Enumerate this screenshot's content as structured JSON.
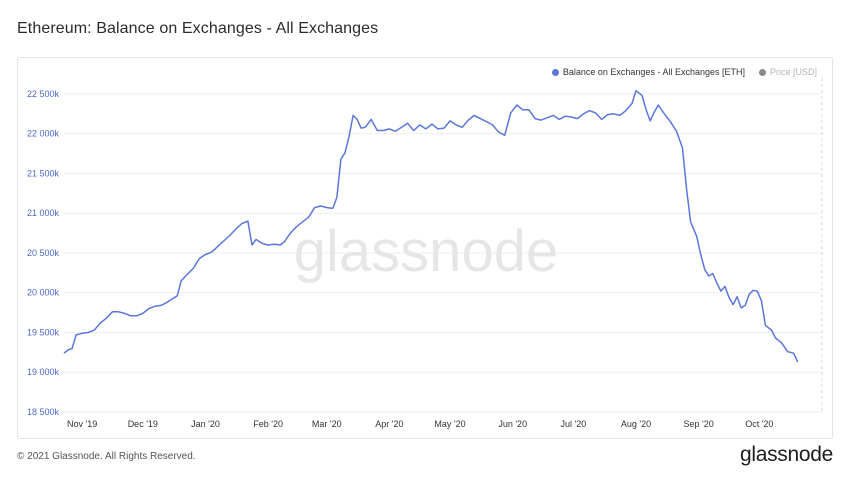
{
  "header": {
    "title": "Ethereum: Balance on Exchanges - All Exchanges"
  },
  "footer": {
    "copyright": "© 2021 Glassnode. All Rights Reserved.",
    "logo_text": "glassnode"
  },
  "watermark": "glassnode",
  "colors": {
    "line": "#5b77db",
    "price": "#8a8a8a",
    "grid": "#eeeeee",
    "tick": "#4a68c8",
    "xtick": "#333333",
    "watermark": "#e6e6e6"
  },
  "chart_data": {
    "type": "line",
    "title": "Ethereum: Balance on Exchanges - All Exchanges",
    "legend": [
      {
        "name": "Balance on Exchanges - All Exchanges [ETH]",
        "color": "#5b77db",
        "active": true
      },
      {
        "name": "Price [USD]",
        "color": "#8a8a8a",
        "active": false
      }
    ],
    "legend_position": "top-right",
    "grid": true,
    "ylim": [
      18500000,
      22700000
    ],
    "y_ticks": [
      {
        "value": 18500000,
        "label": "18 500k"
      },
      {
        "value": 19000000,
        "label": "19 000k"
      },
      {
        "value": 19500000,
        "label": "19 500k"
      },
      {
        "value": 20000000,
        "label": "20 000k"
      },
      {
        "value": 20500000,
        "label": "20 500k"
      },
      {
        "value": 21000000,
        "label": "21 000k"
      },
      {
        "value": 21500000,
        "label": "21 500k"
      },
      {
        "value": 22000000,
        "label": "22 000k"
      },
      {
        "value": 22500000,
        "label": "22 500k"
      }
    ],
    "xlim": [
      "2019-10-24",
      "2020-11-02"
    ],
    "x_ticks": [
      {
        "date": "2019-11-01",
        "label": "Nov '19"
      },
      {
        "date": "2019-12-01",
        "label": "Dec '19"
      },
      {
        "date": "2020-01-01",
        "label": "Jan '20"
      },
      {
        "date": "2020-02-01",
        "label": "Feb '20"
      },
      {
        "date": "2020-03-01",
        "label": "Mar '20"
      },
      {
        "date": "2020-04-01",
        "label": "Apr '20"
      },
      {
        "date": "2020-05-01",
        "label": "May '20"
      },
      {
        "date": "2020-06-01",
        "label": "Jun '20"
      },
      {
        "date": "2020-07-01",
        "label": "Jul '20"
      },
      {
        "date": "2020-08-01",
        "label": "Aug '20"
      },
      {
        "date": "2020-09-01",
        "label": "Sep '20"
      },
      {
        "date": "2020-10-01",
        "label": "Oct '20"
      }
    ],
    "series": [
      {
        "name": "Balance on Exchanges - All Exchanges [ETH]",
        "points": [
          [
            "2019-10-24",
            19240000
          ],
          [
            "2019-10-26",
            19280000
          ],
          [
            "2019-10-28",
            19300000
          ],
          [
            "2019-10-30",
            19470000
          ],
          [
            "2019-11-02",
            19490000
          ],
          [
            "2019-11-05",
            19500000
          ],
          [
            "2019-11-08",
            19530000
          ],
          [
            "2019-11-11",
            19620000
          ],
          [
            "2019-11-14",
            19680000
          ],
          [
            "2019-11-17",
            19760000
          ],
          [
            "2019-11-20",
            19760000
          ],
          [
            "2019-11-23",
            19740000
          ],
          [
            "2019-11-26",
            19710000
          ],
          [
            "2019-11-29",
            19710000
          ],
          [
            "2019-12-02",
            19740000
          ],
          [
            "2019-12-05",
            19800000
          ],
          [
            "2019-12-08",
            19830000
          ],
          [
            "2019-12-11",
            19840000
          ],
          [
            "2019-12-14",
            19880000
          ],
          [
            "2019-12-17",
            19930000
          ],
          [
            "2019-12-19",
            19960000
          ],
          [
            "2019-12-21",
            20150000
          ],
          [
            "2019-12-24",
            20230000
          ],
          [
            "2019-12-27",
            20310000
          ],
          [
            "2019-12-30",
            20430000
          ],
          [
            "2020-01-02",
            20480000
          ],
          [
            "2020-01-05",
            20510000
          ],
          [
            "2020-01-08",
            20580000
          ],
          [
            "2020-01-11",
            20650000
          ],
          [
            "2020-01-14",
            20720000
          ],
          [
            "2020-01-17",
            20800000
          ],
          [
            "2020-01-20",
            20870000
          ],
          [
            "2020-01-23",
            20900000
          ],
          [
            "2020-01-25",
            20600000
          ],
          [
            "2020-01-27",
            20670000
          ],
          [
            "2020-01-30",
            20620000
          ],
          [
            "2020-02-02",
            20600000
          ],
          [
            "2020-02-05",
            20610000
          ],
          [
            "2020-02-08",
            20600000
          ],
          [
            "2020-02-10",
            20640000
          ],
          [
            "2020-02-13",
            20750000
          ],
          [
            "2020-02-16",
            20830000
          ],
          [
            "2020-02-19",
            20890000
          ],
          [
            "2020-02-22",
            20950000
          ],
          [
            "2020-02-25",
            21070000
          ],
          [
            "2020-02-28",
            21090000
          ],
          [
            "2020-03-02",
            21070000
          ],
          [
            "2020-03-05",
            21060000
          ],
          [
            "2020-03-07",
            21200000
          ],
          [
            "2020-03-09",
            21680000
          ],
          [
            "2020-03-11",
            21760000
          ],
          [
            "2020-03-13",
            21960000
          ],
          [
            "2020-03-15",
            22230000
          ],
          [
            "2020-03-17",
            22180000
          ],
          [
            "2020-03-19",
            22070000
          ],
          [
            "2020-03-21",
            22080000
          ],
          [
            "2020-03-24",
            22180000
          ],
          [
            "2020-03-27",
            22040000
          ],
          [
            "2020-03-30",
            22040000
          ],
          [
            "2020-04-02",
            22060000
          ],
          [
            "2020-04-05",
            22030000
          ],
          [
            "2020-04-08",
            22080000
          ],
          [
            "2020-04-11",
            22130000
          ],
          [
            "2020-04-14",
            22040000
          ],
          [
            "2020-04-17",
            22110000
          ],
          [
            "2020-04-20",
            22060000
          ],
          [
            "2020-04-23",
            22120000
          ],
          [
            "2020-04-26",
            22060000
          ],
          [
            "2020-04-29",
            22070000
          ],
          [
            "2020-05-02",
            22160000
          ],
          [
            "2020-05-05",
            22110000
          ],
          [
            "2020-05-08",
            22080000
          ],
          [
            "2020-05-11",
            22170000
          ],
          [
            "2020-05-14",
            22230000
          ],
          [
            "2020-05-17",
            22190000
          ],
          [
            "2020-05-20",
            22150000
          ],
          [
            "2020-05-23",
            22110000
          ],
          [
            "2020-05-26",
            22020000
          ],
          [
            "2020-05-29",
            21980000
          ],
          [
            "2020-06-01",
            22260000
          ],
          [
            "2020-06-04",
            22360000
          ],
          [
            "2020-06-07",
            22300000
          ],
          [
            "2020-06-10",
            22300000
          ],
          [
            "2020-06-13",
            22190000
          ],
          [
            "2020-06-16",
            22170000
          ],
          [
            "2020-06-19",
            22200000
          ],
          [
            "2020-06-22",
            22230000
          ],
          [
            "2020-06-25",
            22180000
          ],
          [
            "2020-06-28",
            22220000
          ],
          [
            "2020-07-01",
            22210000
          ],
          [
            "2020-07-04",
            22190000
          ],
          [
            "2020-07-07",
            22250000
          ],
          [
            "2020-07-10",
            22290000
          ],
          [
            "2020-07-13",
            22260000
          ],
          [
            "2020-07-16",
            22180000
          ],
          [
            "2020-07-19",
            22240000
          ],
          [
            "2020-07-22",
            22250000
          ],
          [
            "2020-07-25",
            22230000
          ],
          [
            "2020-07-28",
            22290000
          ],
          [
            "2020-07-31",
            22380000
          ],
          [
            "2020-08-02",
            22540000
          ],
          [
            "2020-08-05",
            22480000
          ],
          [
            "2020-08-07",
            22300000
          ],
          [
            "2020-08-09",
            22160000
          ],
          [
            "2020-08-11",
            22270000
          ],
          [
            "2020-08-13",
            22360000
          ],
          [
            "2020-08-16",
            22250000
          ],
          [
            "2020-08-19",
            22150000
          ],
          [
            "2020-08-22",
            22030000
          ],
          [
            "2020-08-25",
            21820000
          ],
          [
            "2020-08-27",
            21300000
          ],
          [
            "2020-08-29",
            20890000
          ],
          [
            "2020-09-01",
            20710000
          ],
          [
            "2020-09-03",
            20480000
          ],
          [
            "2020-09-05",
            20290000
          ],
          [
            "2020-09-07",
            20210000
          ],
          [
            "2020-09-09",
            20240000
          ],
          [
            "2020-09-11",
            20120000
          ],
          [
            "2020-09-13",
            20020000
          ],
          [
            "2020-09-15",
            20080000
          ],
          [
            "2020-09-17",
            19940000
          ],
          [
            "2020-09-19",
            19850000
          ],
          [
            "2020-09-21",
            19950000
          ],
          [
            "2020-09-23",
            19810000
          ],
          [
            "2020-09-25",
            19840000
          ],
          [
            "2020-09-27",
            19980000
          ],
          [
            "2020-09-29",
            20030000
          ],
          [
            "2020-10-01",
            20020000
          ],
          [
            "2020-10-03",
            19900000
          ],
          [
            "2020-10-05",
            19590000
          ],
          [
            "2020-10-08",
            19530000
          ],
          [
            "2020-10-10",
            19430000
          ],
          [
            "2020-10-13",
            19370000
          ],
          [
            "2020-10-16",
            19260000
          ],
          [
            "2020-10-19",
            19240000
          ],
          [
            "2020-10-21",
            19130000
          ]
        ]
      }
    ]
  }
}
